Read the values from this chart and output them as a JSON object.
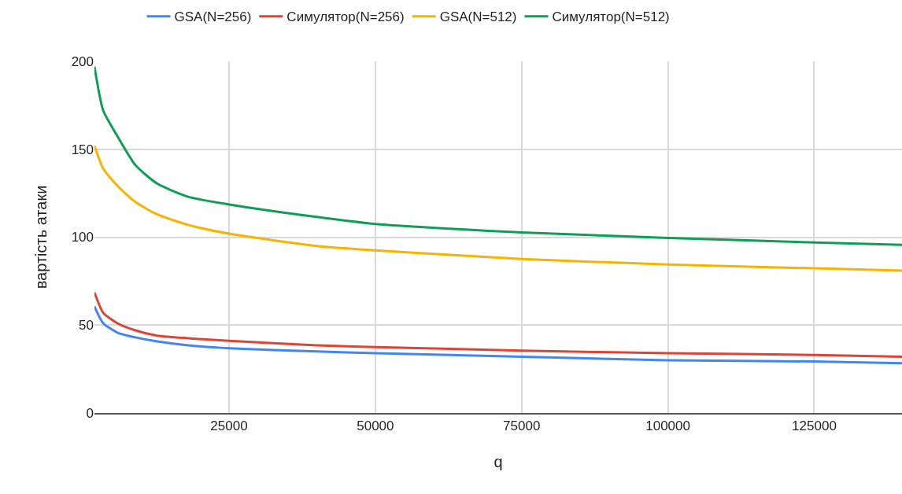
{
  "chart_data": {
    "type": "line",
    "xlabel": "q",
    "ylabel": "вартість атаки",
    "x": [
      2000,
      3500,
      6000,
      9000,
      12700,
      18000,
      25000,
      40000,
      50000,
      75000,
      100000,
      125000,
      140000
    ],
    "series": [
      {
        "name": "GSA(N=256)",
        "color": "#4285f4",
        "values": [
          60.6,
          51,
          45.6,
          43,
          40.7,
          38.5,
          36.8,
          35,
          34,
          32,
          30,
          29.3,
          28.3
        ]
      },
      {
        "name": "Симулятор(N=256)",
        "color": "#db4437",
        "values": [
          68.6,
          57,
          50.9,
          47,
          44,
          42.5,
          41,
          38.5,
          37.5,
          35.5,
          34,
          33,
          32
        ]
      },
      {
        "name": "GSA(N=512)",
        "color": "#f4b400",
        "values": [
          152,
          139,
          129,
          120,
          113,
          107,
          102,
          95,
          92.5,
          87.6,
          84.5,
          82.3,
          81
        ]
      },
      {
        "name": "Симулятор(N=512)",
        "color": "#0f9d58",
        "values": [
          197,
          172,
          157,
          141,
          130.5,
          123,
          118.6,
          111.5,
          107.5,
          102.7,
          99.6,
          97,
          95.6
        ]
      }
    ],
    "xlim": [
      2000,
      140000
    ],
    "xticks": [
      25000,
      50000,
      75000,
      100000,
      125000
    ],
    "ylim": [
      0,
      200
    ],
    "yticks": [
      0,
      50,
      100,
      150,
      200
    ],
    "grid": true,
    "legend": "top",
    "marker": "none",
    "line_style": "solid"
  }
}
